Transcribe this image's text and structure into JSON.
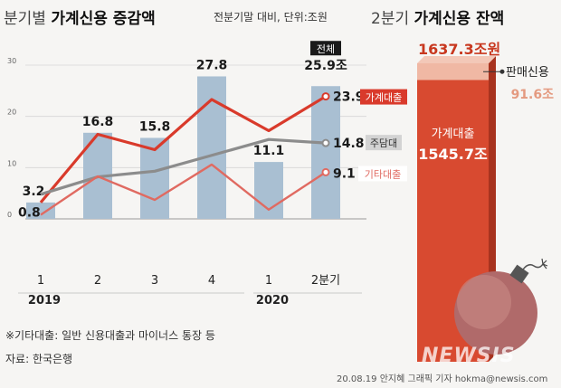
{
  "title": {
    "part1": "분기별",
    "part2": "가계신용 증감액"
  },
  "subtitle": "전분기말 대비, 단위:조원",
  "right_title": {
    "part1": "2분기",
    "part2": "가계신용 잔액"
  },
  "notes": {
    "footnote": "※기타대출: 일반 신용대출과 마이너스 통장 등",
    "source": "자료: 한국은행"
  },
  "credit": "20.08.19 안지혜 그래픽 기자 hokma@newsis.com",
  "watermark": "NEWSIS",
  "colors": {
    "bar": "#a9bfd2",
    "total_line": "#d93a2b",
    "mortgage_line": "#8c8c8c",
    "other_line": "#e06a61",
    "balance_bar": "#d84a30",
    "sales_credit": "#f0b8a4"
  },
  "chart_data": [
    {
      "type": "bar",
      "title": "분기별 가계신용 증감액",
      "unit": "조원",
      "categories": [
        "1",
        "2",
        "3",
        "4",
        "1",
        "2분기"
      ],
      "year_labels": [
        {
          "label": "2019",
          "index": 0
        },
        {
          "label": "2020",
          "index": 4
        }
      ],
      "ylim": [
        0,
        30
      ],
      "yticks": [
        0,
        10,
        20,
        30
      ],
      "grid": true,
      "bars": {
        "name": "전체",
        "values": [
          3.2,
          16.8,
          15.8,
          27.8,
          11.1,
          25.9
        ],
        "labels": [
          "3.2",
          "16.8",
          "15.8",
          "27.8",
          "11.1",
          "25.9조"
        ]
      },
      "series": [
        {
          "name": "가계대출",
          "values": [
            3.2,
            16.5,
            13.5,
            23.3,
            17.2,
            23.9
          ],
          "end_label": "23.9"
        },
        {
          "name": "주담대",
          "values": [
            4.8,
            8.2,
            9.3,
            12.4,
            15.5,
            14.8
          ],
          "end_label": "14.8"
        },
        {
          "name": "기타대출",
          "values": [
            0.8,
            8.3,
            3.7,
            10.6,
            1.8,
            9.1
          ],
          "end_label": "9.1"
        }
      ],
      "start_label": "0.8",
      "total_tag": "전체"
    },
    {
      "type": "bar",
      "title": "2분기 가계신용 잔액",
      "unit": "조원",
      "segments": [
        {
          "name": "가계대출",
          "value": 1545.7,
          "label": "1545.7조"
        },
        {
          "name": "판매신용",
          "value": 91.6,
          "label": "91.6조"
        }
      ],
      "total": 1637.3,
      "total_label": "1637.3조원"
    }
  ]
}
